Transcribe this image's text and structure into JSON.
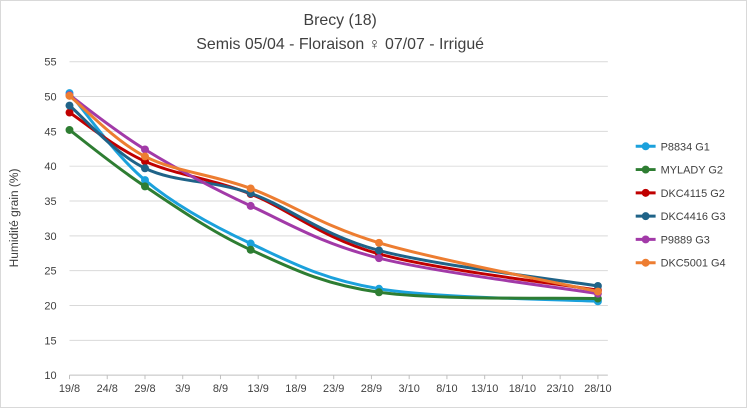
{
  "chart_data": {
    "type": "line",
    "title": "Brecy (18)",
    "subtitle": "Semis 05/04 - Floraison ♀ 07/07 - Irrigué",
    "xlabel": "",
    "ylabel": "Humidité grain (%)",
    "ylim": [
      10,
      55
    ],
    "yticks": [
      "10",
      "15",
      "20",
      "25",
      "30",
      "35",
      "40",
      "45",
      "50",
      "55"
    ],
    "xticks": [
      "19/8",
      "24/8",
      "29/8",
      "3/9",
      "8/9",
      "13/9",
      "18/9",
      "23/9",
      "28/9",
      "3/10",
      "8/10",
      "13/10",
      "18/10",
      "23/10",
      "28/10"
    ],
    "x_days_from_19_8": [
      0,
      10,
      24,
      41,
      70
    ],
    "grid": true,
    "legend_position": "right",
    "series": [
      {
        "name": "P8834 G1",
        "color": "#1ba1dc",
        "values": [
          50.5,
          38.0,
          28.9,
          22.4,
          20.6
        ]
      },
      {
        "name": "MYLADY G2",
        "color": "#2e7d32",
        "values": [
          45.2,
          37.1,
          28.0,
          21.9,
          21.0
        ]
      },
      {
        "name": "DKC4115 G2",
        "color": "#c00000",
        "values": [
          47.7,
          40.7,
          36.0,
          27.4,
          22.2
        ]
      },
      {
        "name": "DKC4416 G3",
        "color": "#1f6388",
        "values": [
          48.7,
          39.7,
          36.1,
          27.9,
          22.8
        ]
      },
      {
        "name": "P9889 G3",
        "color": "#a23aa8",
        "values": [
          50.2,
          42.4,
          34.3,
          26.8,
          21.7
        ]
      },
      {
        "name": "DKC5001 G4",
        "color": "#ed7d31",
        "values": [
          50.1,
          41.4,
          36.8,
          29.0,
          22.0
        ]
      }
    ]
  }
}
